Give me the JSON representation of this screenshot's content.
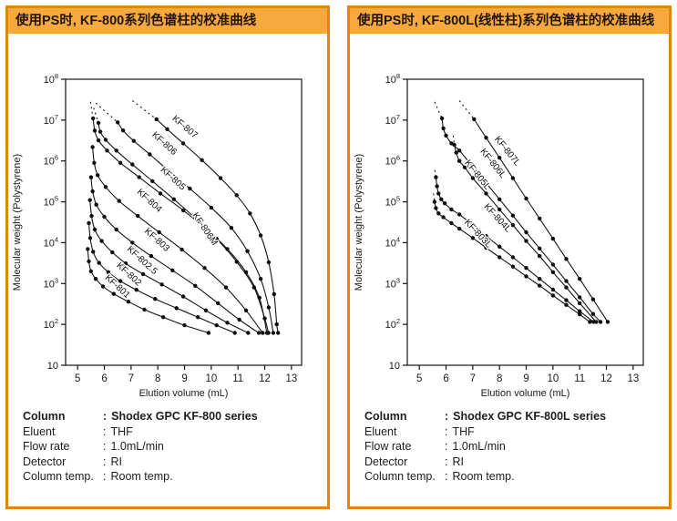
{
  "ui": {
    "colon": ":"
  },
  "colors": {
    "panel_border": "#E0870F",
    "header_bg": "#F5A93F",
    "header_text": "#221506",
    "curve": "#141414"
  },
  "panels": [
    {
      "title": "使用PS时, KF-800系列色谱柱的校准曲线",
      "info": [
        {
          "label": "Column",
          "value": "Shodex GPC KF-800 series"
        },
        {
          "label": "Eluent",
          "value": "THF"
        },
        {
          "label": "Flow rate",
          "value": "1.0mL/min"
        },
        {
          "label": "Detector",
          "value": "RI"
        },
        {
          "label": "Column temp.",
          "value": "Room temp."
        }
      ]
    },
    {
      "title": "使用PS时, KF-800L(线性柱)系列色谱柱的校准曲线",
      "info": [
        {
          "label": "Column",
          "value": "Shodex GPC KF-800L series"
        },
        {
          "label": "Eluent",
          "value": "THF"
        },
        {
          "label": "Flow rate",
          "value": "1.0mL/min"
        },
        {
          "label": "Detector",
          "value": "RI"
        },
        {
          "label": "Column temp.",
          "value": "Room temp."
        }
      ]
    }
  ],
  "chart_data": [
    {
      "type": "line",
      "title": "使用PS时, KF-800系列色谱柱的校准曲线",
      "xlabel": "Elution volume (mL)",
      "ylabel": "Molecular weight (Polystyrene)",
      "x_ticks": [
        5,
        6,
        7,
        8,
        9,
        10,
        11,
        12,
        13
      ],
      "xlim": [
        4.55,
        13.38
      ],
      "y_scale": "log",
      "y_tick_exponents": [
        8,
        7,
        6,
        5,
        4,
        3,
        2,
        1
      ],
      "ylim_exponents": [
        1,
        8
      ],
      "grid": false,
      "legend": "inline-curve-labels",
      "series": [
        {
          "name": "KF-807",
          "dashed": [
            [
              7.05,
              30000000
            ],
            [
              7.95,
              10500000
            ]
          ],
          "points": [
            [
              7.95,
              10500000
            ],
            [
              8.35,
              6000000
            ],
            [
              8.95,
              2700000
            ],
            [
              9.65,
              1050000
            ],
            [
              10.35,
              380000
            ],
            [
              10.95,
              145000
            ],
            [
              11.45,
              52000
            ],
            [
              11.85,
              15000
            ],
            [
              12.15,
              3300
            ],
            [
              12.35,
              550
            ],
            [
              12.45,
              100
            ],
            [
              12.5,
              62
            ]
          ],
          "label": {
            "x": 8.95,
            "logy": 6.78,
            "rot": 40
          }
        },
        {
          "name": "KF-806",
          "dashed": [
            [
              5.68,
              26000000
            ],
            [
              6.5,
              8800000
            ]
          ],
          "points": [
            [
              6.5,
              8800000
            ],
            [
              6.7,
              5600000
            ],
            [
              7.1,
              3100000
            ],
            [
              7.7,
              1450000
            ],
            [
              8.4,
              580000
            ],
            [
              9.2,
              210000
            ],
            [
              10.0,
              72000
            ],
            [
              10.75,
              23000
            ],
            [
              11.35,
              6200
            ],
            [
              11.85,
              1300
            ],
            [
              12.15,
              260
            ],
            [
              12.32,
              62
            ]
          ],
          "label": {
            "x": 8.18,
            "logy": 6.38,
            "rot": 42
          }
        },
        {
          "name": "KF-805",
          "dashed": [
            [
              5.48,
              28000000
            ],
            [
              5.58,
              11000000
            ]
          ],
          "points": [
            [
              5.58,
              11000000
            ],
            [
              5.64,
              5500000
            ],
            [
              5.78,
              3200000
            ],
            [
              6.1,
              1800000
            ],
            [
              6.6,
              900000
            ],
            [
              7.3,
              400000
            ],
            [
              8.1,
              160000
            ],
            [
              8.95,
              62000
            ],
            [
              9.8,
              22000
            ],
            [
              10.6,
              7000
            ],
            [
              11.3,
              1900
            ],
            [
              11.8,
              450
            ],
            [
              12.08,
              62
            ]
          ],
          "label": {
            "x": 8.5,
            "logy": 5.52,
            "rot": 42
          }
        },
        {
          "name": "KF-806M",
          "dashed": [
            [
              5.6,
              20000000
            ],
            [
              5.78,
              8500000
            ]
          ],
          "points": [
            [
              5.78,
              8500000
            ],
            [
              5.85,
              5200000
            ],
            [
              6.05,
              3300000
            ],
            [
              6.45,
              1800000
            ],
            [
              7.05,
              820000
            ],
            [
              7.8,
              320000
            ],
            [
              8.6,
              115000
            ],
            [
              9.4,
              40000
            ],
            [
              10.2,
              12500
            ],
            [
              10.95,
              3400
            ],
            [
              11.6,
              800
            ],
            [
              12.0,
              140
            ],
            [
              12.14,
              62
            ]
          ],
          "label": {
            "x": 9.68,
            "logy": 4.3,
            "rot": 56
          }
        },
        {
          "name": "KF-804",
          "dashed": null,
          "points": [
            [
              5.56,
              2200000
            ],
            [
              5.62,
              900000
            ],
            [
              5.75,
              450000
            ],
            [
              6.05,
              230000
            ],
            [
              6.55,
              105000
            ],
            [
              7.25,
              45000
            ],
            [
              8.05,
              18000
            ],
            [
              8.9,
              6800
            ],
            [
              9.75,
              2400
            ],
            [
              10.55,
              800
            ],
            [
              11.3,
              220
            ],
            [
              11.92,
              62
            ]
          ],
          "label": {
            "x": 7.62,
            "logy": 4.98,
            "rot": 42
          }
        },
        {
          "name": "KF-803",
          "dashed": null,
          "points": [
            [
              5.5,
              400000
            ],
            [
              5.56,
              180000
            ],
            [
              5.7,
              85000
            ],
            [
              6.0,
              43000
            ],
            [
              6.45,
              21000
            ],
            [
              7.05,
              10000
            ],
            [
              7.75,
              4700
            ],
            [
              8.55,
              2100
            ],
            [
              9.4,
              880
            ],
            [
              10.25,
              330
            ],
            [
              11.05,
              130
            ],
            [
              11.78,
              62
            ]
          ],
          "label": {
            "x": 7.9,
            "logy": 4.02,
            "rot": 42
          }
        },
        {
          "name": "KF-802.5",
          "dashed": null,
          "points": [
            [
              5.46,
              110000
            ],
            [
              5.52,
              45000
            ],
            [
              5.64,
              21000
            ],
            [
              5.9,
              11000
            ],
            [
              6.3,
              5800
            ],
            [
              6.8,
              3100
            ],
            [
              7.45,
              1700
            ],
            [
              8.15,
              950
            ],
            [
              8.95,
              480
            ],
            [
              9.8,
              220
            ],
            [
              10.6,
              110
            ],
            [
              11.38,
              62
            ]
          ],
          "label": {
            "x": 7.35,
            "logy": 3.52,
            "rot": 42
          }
        },
        {
          "name": "KF-802",
          "dashed": null,
          "points": [
            [
              5.42,
              30000
            ],
            [
              5.47,
              13000
            ],
            [
              5.58,
              6000
            ],
            [
              5.8,
              3200
            ],
            [
              6.15,
              1900
            ],
            [
              6.6,
              1150
            ],
            [
              7.2,
              700
            ],
            [
              7.9,
              420
            ],
            [
              8.7,
              250
            ],
            [
              9.5,
              150
            ],
            [
              10.2,
              95
            ],
            [
              10.88,
              62
            ]
          ],
          "label": {
            "x": 6.85,
            "logy": 3.18,
            "rot": 42
          }
        },
        {
          "name": "KF-801",
          "dashed": null,
          "points": [
            [
              5.38,
              7000
            ],
            [
              5.42,
              3500
            ],
            [
              5.5,
              2000
            ],
            [
              5.68,
              1300
            ],
            [
              5.95,
              850
            ],
            [
              6.35,
              560
            ],
            [
              6.9,
              360
            ],
            [
              7.5,
              230
            ],
            [
              8.2,
              150
            ],
            [
              9.0,
              95
            ],
            [
              9.9,
              62
            ]
          ],
          "label": {
            "x": 6.42,
            "logy": 2.88,
            "rot": 42
          }
        }
      ]
    },
    {
      "type": "line",
      "title": "使用PS时, KF-800L(线性柱)系列色谱柱的校准曲线",
      "xlabel": "Elution volume (mL)",
      "ylabel": "Molecular weight (Polystyrene)",
      "x_ticks": [
        5,
        6,
        7,
        8,
        9,
        10,
        11,
        12,
        13
      ],
      "xlim": [
        4.55,
        13.38
      ],
      "y_scale": "log",
      "y_tick_exponents": [
        8,
        7,
        6,
        5,
        4,
        3,
        2,
        1
      ],
      "ylim_exponents": [
        1,
        8
      ],
      "grid": false,
      "legend": "inline-curve-labels",
      "series": [
        {
          "name": "KF-807L",
          "dashed": [
            [
              6.5,
              30000000
            ],
            [
              7.05,
              10500000
            ]
          ],
          "points": [
            [
              7.05,
              10500000
            ],
            [
              7.5,
              3700000
            ],
            [
              8.0,
              1200000
            ],
            [
              8.5,
              380000
            ],
            [
              9.0,
              120000
            ],
            [
              9.5,
              39000
            ],
            [
              10.0,
              12500
            ],
            [
              10.5,
              4000
            ],
            [
              11.0,
              1300
            ],
            [
              11.5,
              410
            ],
            [
              12.05,
              115
            ]
          ],
          "label": {
            "x": 8.22,
            "logy": 6.2,
            "rot": 51
          }
        },
        {
          "name": "KF-806L",
          "dashed": [
            [
              5.57,
              28000000
            ],
            [
              5.85,
              11000000
            ]
          ],
          "points": [
            [
              5.85,
              11000000
            ],
            [
              5.9,
              6300000
            ],
            [
              6.0,
              4200000
            ],
            [
              6.2,
              2700000
            ],
            [
              6.5,
              1800000
            ],
            [
              7.0,
              720000
            ],
            [
              7.5,
              290000
            ],
            [
              8.0,
              115000
            ],
            [
              8.5,
              46000
            ],
            [
              9.0,
              18000
            ],
            [
              9.5,
              7200
            ],
            [
              10.0,
              2900
            ],
            [
              10.5,
              1150
            ],
            [
              11.0,
              460
            ],
            [
              11.5,
              180
            ],
            [
              11.78,
              115
            ]
          ],
          "label": {
            "x": 7.68,
            "logy": 5.9,
            "rot": 51
          }
        },
        {
          "name": "KF-805L",
          "dashed": [
            [
              6.27,
              4200000
            ],
            [
              6.31,
              2500000
            ]
          ],
          "points": [
            [
              6.31,
              2500000
            ],
            [
              6.38,
              1600000
            ],
            [
              6.5,
              1000000
            ],
            [
              6.7,
              700000
            ],
            [
              7.0,
              380000
            ],
            [
              7.5,
              160000
            ],
            [
              8.0,
              65000
            ],
            [
              8.5,
              27000
            ],
            [
              9.0,
              11000
            ],
            [
              9.5,
              4700
            ],
            [
              10.0,
              1900
            ],
            [
              10.5,
              800
            ],
            [
              11.0,
              330
            ],
            [
              11.62,
              115
            ]
          ],
          "label": {
            "x": 7.1,
            "logy": 5.62,
            "rot": 51
          }
        },
        {
          "name": "KF-804L",
          "dashed": [
            [
              5.58,
              600000
            ],
            [
              5.62,
              400000
            ]
          ],
          "points": [
            [
              5.62,
              400000
            ],
            [
              5.66,
              240000
            ],
            [
              5.72,
              160000
            ],
            [
              5.82,
              115000
            ],
            [
              5.95,
              92000
            ],
            [
              6.2,
              65000
            ],
            [
              6.5,
              49000
            ],
            [
              7.0,
              27000
            ],
            [
              7.5,
              14500
            ],
            [
              8.0,
              8000
            ],
            [
              8.5,
              4400
            ],
            [
              9.0,
              2400
            ],
            [
              9.5,
              1300
            ],
            [
              10.0,
              710
            ],
            [
              10.5,
              390
            ],
            [
              11.0,
              210
            ],
            [
              11.52,
              115
            ]
          ],
          "label": {
            "x": 7.85,
            "logy": 4.56,
            "rot": 47
          }
        },
        {
          "name": "KF-803L",
          "dashed": [
            [
              5.53,
              160000
            ],
            [
              5.57,
              100000
            ]
          ],
          "points": [
            [
              5.57,
              100000
            ],
            [
              5.62,
              70000
            ],
            [
              5.72,
              52000
            ],
            [
              5.9,
              42000
            ],
            [
              6.2,
              30000
            ],
            [
              6.5,
              22000
            ],
            [
              7.0,
              13000
            ],
            [
              7.5,
              7500
            ],
            [
              8.0,
              4400
            ],
            [
              8.5,
              2600
            ],
            [
              9.0,
              1500
            ],
            [
              9.5,
              890
            ],
            [
              10.0,
              510
            ],
            [
              10.5,
              300
            ],
            [
              11.0,
              175
            ],
            [
              11.38,
              115
            ]
          ],
          "label": {
            "x": 7.12,
            "logy": 4.18,
            "rot": 47
          }
        }
      ]
    }
  ]
}
